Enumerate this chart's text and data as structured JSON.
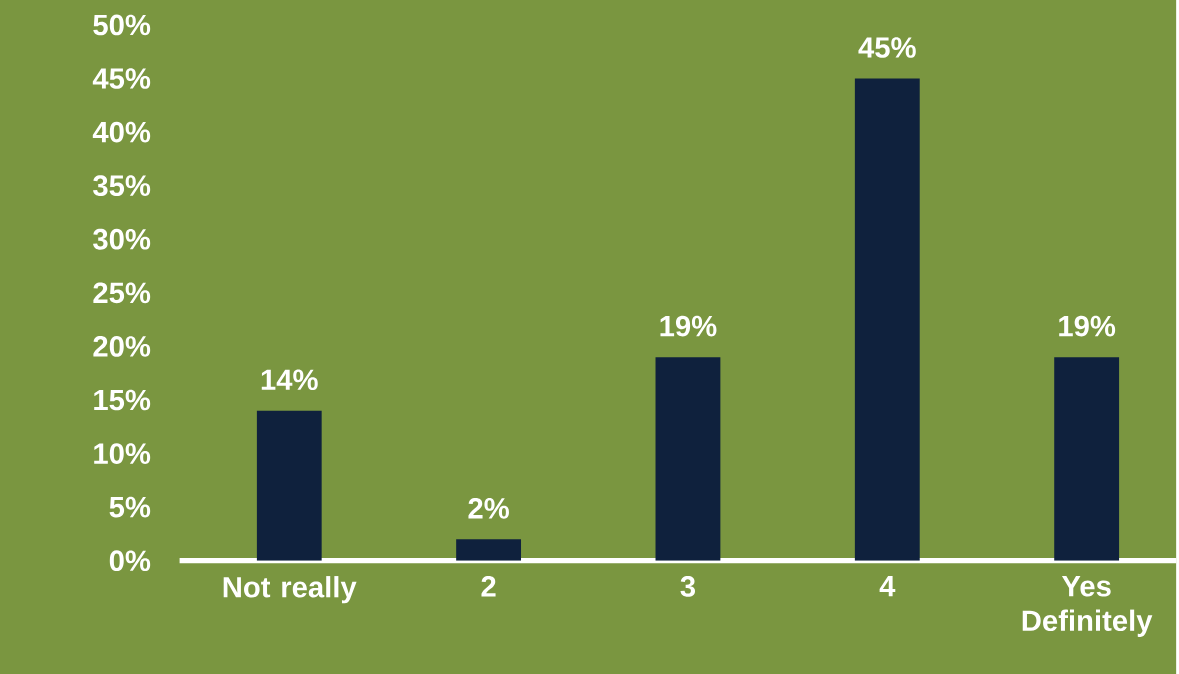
{
  "chart_data": {
    "type": "bar",
    "categories": [
      "Not really",
      "2",
      "3",
      "4",
      "Yes Definitely"
    ],
    "values": [
      14,
      2,
      19,
      45,
      19
    ],
    "color": "#0f213d",
    "value_labels": [
      "14%",
      "2%",
      "19%",
      "45%",
      "19%"
    ],
    "ylim": [
      0,
      50
    ],
    "grid": false,
    "yticks": [
      {
        "value": 0,
        "label": "0%"
      },
      {
        "value": 5,
        "label": "5%"
      },
      {
        "value": 10,
        "label": "10%"
      },
      {
        "value": 15,
        "label": "15%"
      },
      {
        "value": 20,
        "label": "20%"
      },
      {
        "value": 25,
        "label": "25%"
      },
      {
        "value": 30,
        "label": "30%"
      },
      {
        "value": 35,
        "label": "35%"
      },
      {
        "value": 40,
        "label": "40%"
      },
      {
        "value": 45,
        "label": "45%"
      },
      {
        "value": 50,
        "label": "50%"
      }
    ]
  }
}
